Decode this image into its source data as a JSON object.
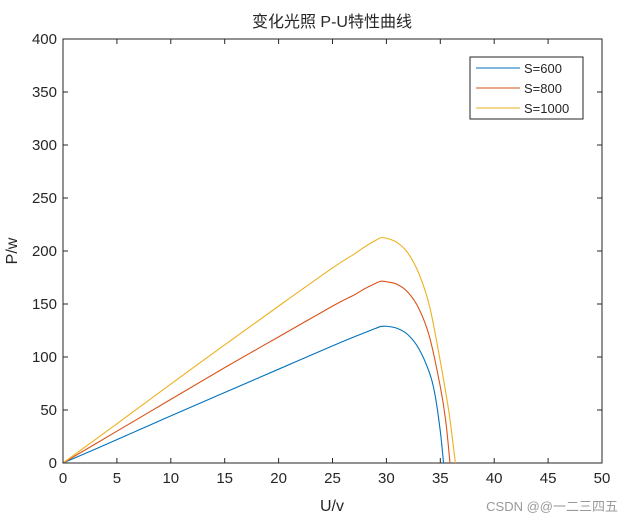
{
  "chart_data": {
    "type": "line",
    "title": "变化光照 P-U特性曲线",
    "xlabel": "U/v",
    "ylabel": "P/w",
    "xlim": [
      0,
      50
    ],
    "ylim": [
      0,
      400
    ],
    "xticks": [
      0,
      5,
      10,
      15,
      20,
      25,
      30,
      35,
      40,
      45,
      50
    ],
    "yticks": [
      0,
      50,
      100,
      150,
      200,
      250,
      300,
      350,
      400
    ],
    "grid": false,
    "legend_position": "top-right",
    "series": [
      {
        "name": "S=600",
        "color": "#0072BD",
        "x": [
          0,
          5,
          10,
          15,
          20,
          25,
          27,
          28,
          29,
          29.5,
          30,
          31,
          32,
          33,
          34,
          34.5,
          35,
          35.3
        ],
        "y": [
          0,
          22,
          44.5,
          66.5,
          88.5,
          110.5,
          119,
          123,
          127,
          128.8,
          129,
          127,
          121,
          108,
          85,
          65,
          30,
          0
        ]
      },
      {
        "name": "S=800",
        "color": "#D95319",
        "x": [
          0,
          5,
          10,
          15,
          20,
          25,
          27,
          28,
          29,
          29.5,
          30,
          31,
          32,
          33,
          34,
          35,
          35.5,
          35.9
        ],
        "y": [
          0,
          30,
          60,
          90,
          119,
          148,
          158.5,
          164.5,
          169.5,
          171.5,
          171,
          168.5,
          161,
          146,
          119,
          72,
          40,
          0
        ]
      },
      {
        "name": "S=1000",
        "color": "#EDB120",
        "x": [
          0,
          5,
          10,
          15,
          20,
          25,
          27,
          28,
          29,
          29.5,
          30,
          31,
          32,
          33,
          34,
          35,
          35.8,
          36.4
        ],
        "y": [
          0,
          37,
          74.5,
          111.5,
          148,
          184,
          197,
          204,
          210,
          212.5,
          212,
          208,
          198,
          179,
          148,
          96,
          48,
          0
        ]
      }
    ]
  },
  "watermark": "CSDN @@一二三四五"
}
